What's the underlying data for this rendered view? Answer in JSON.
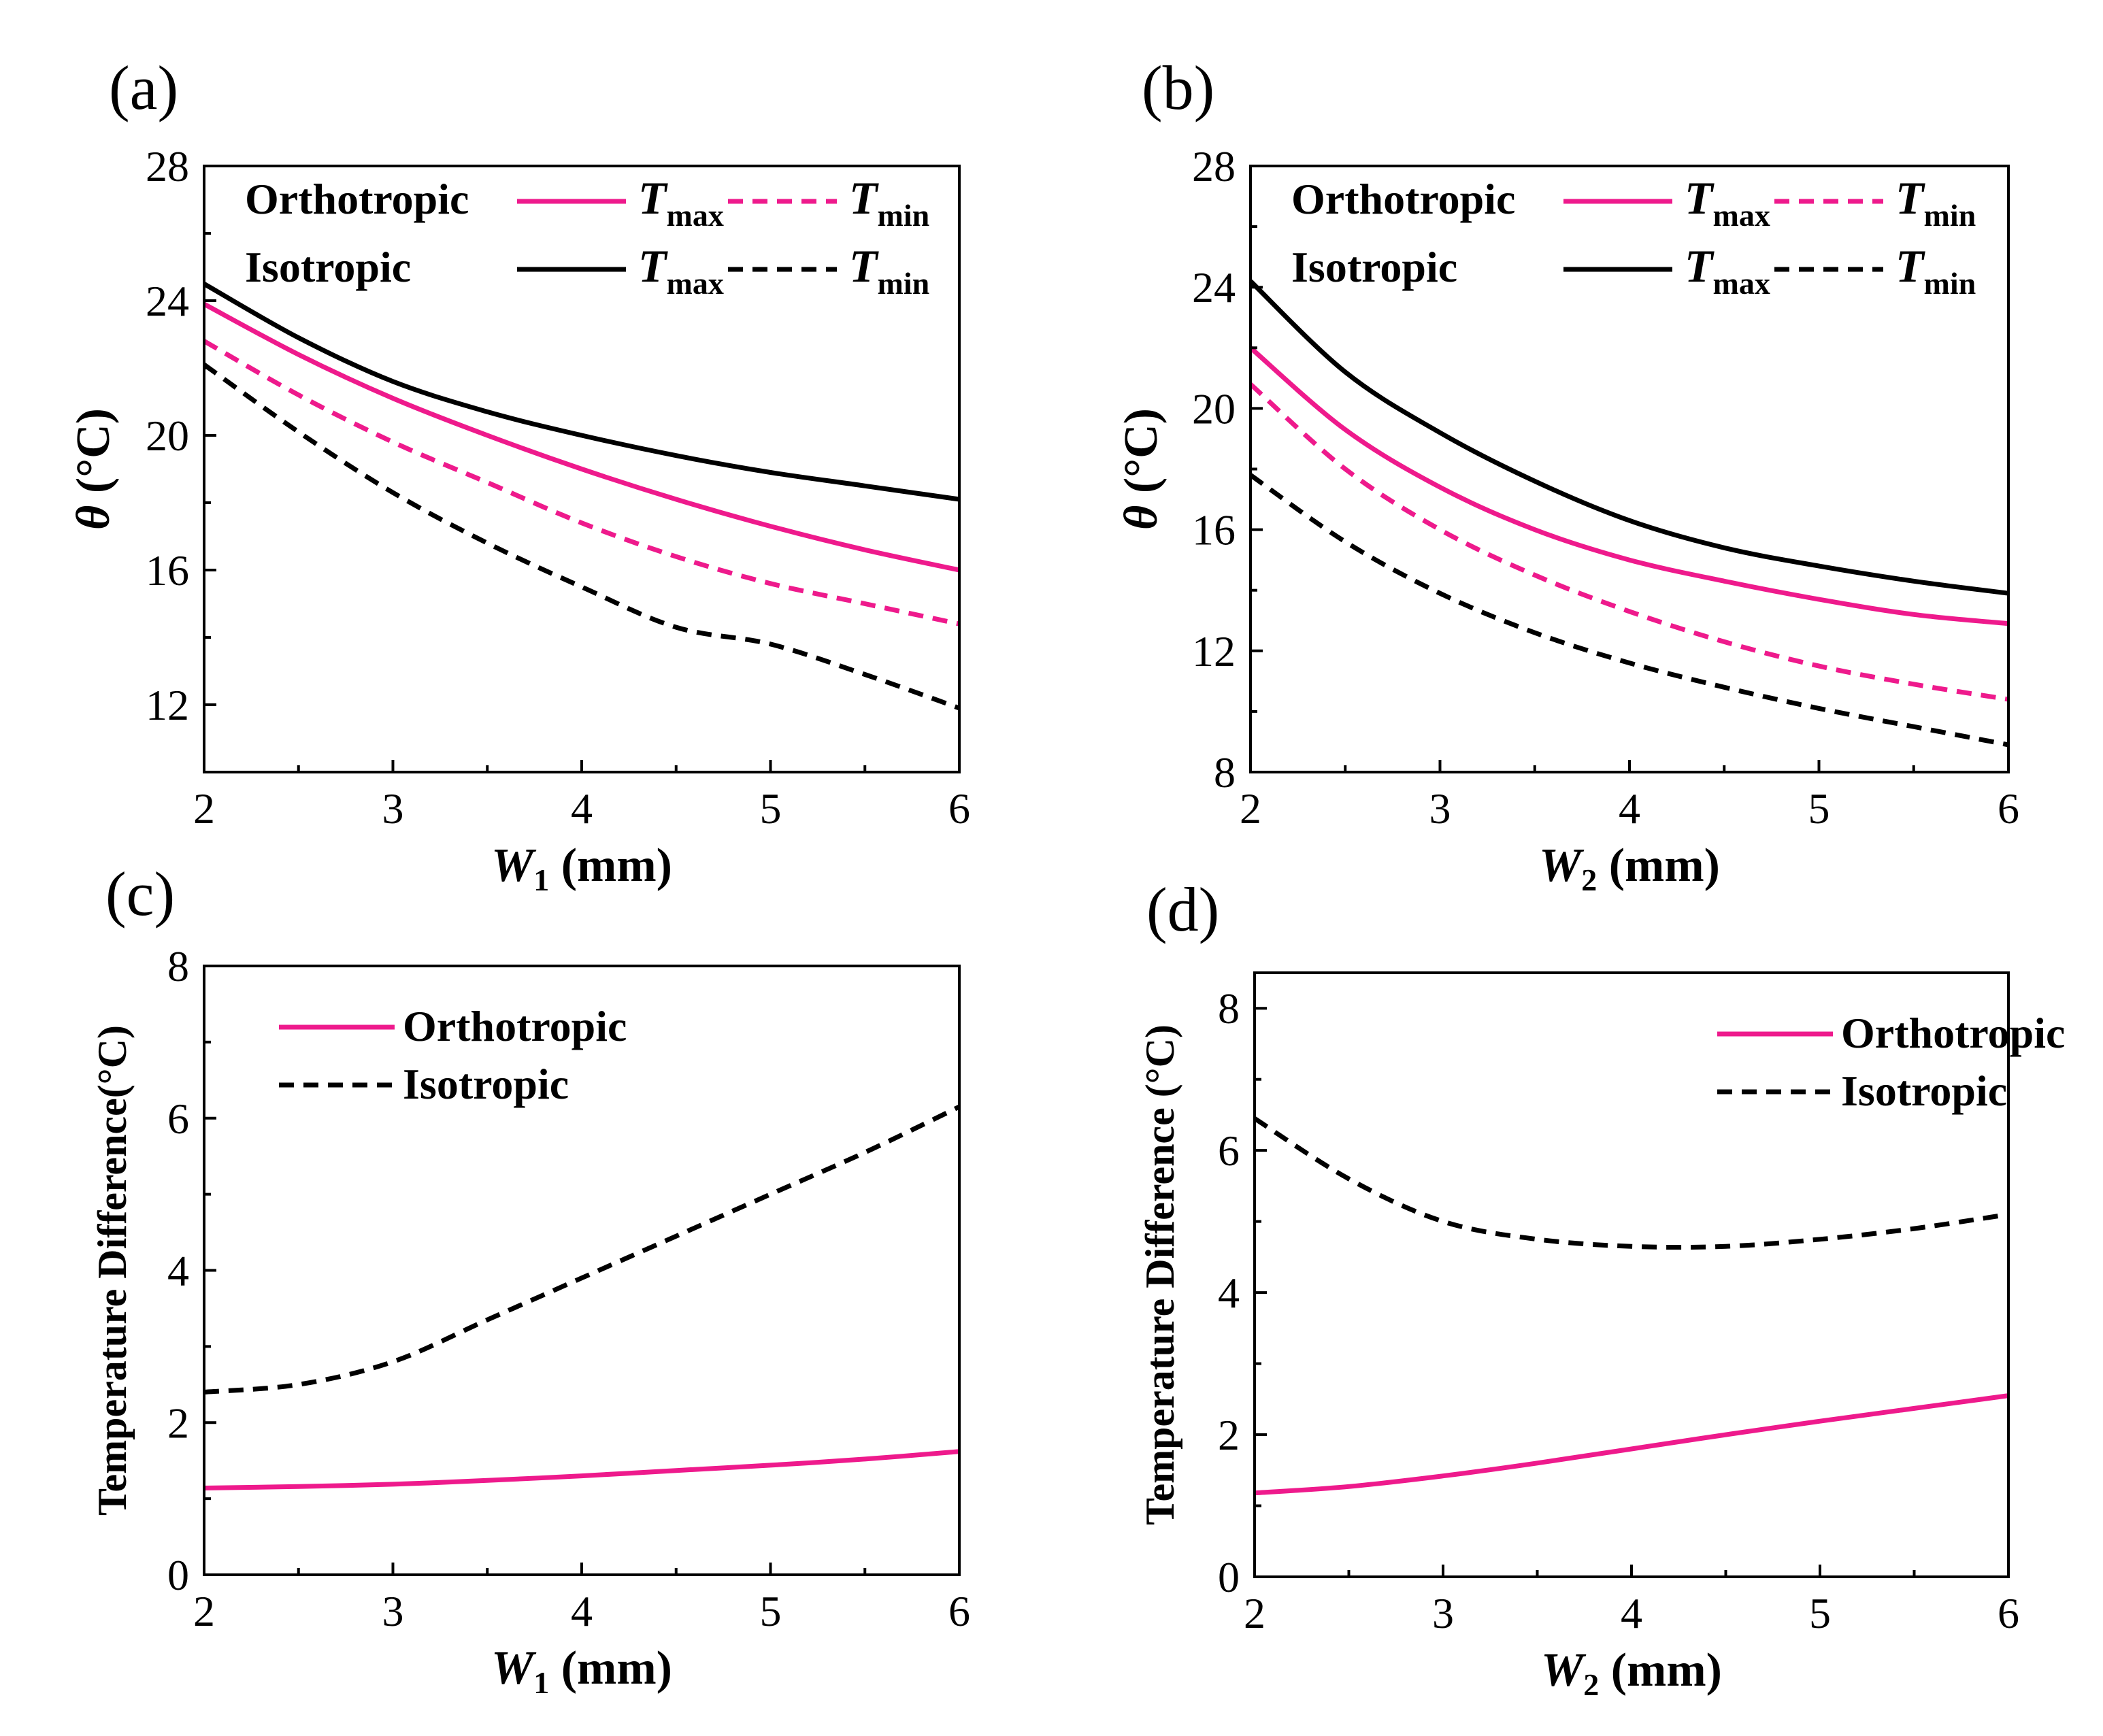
{
  "colors": {
    "orthotropic": "#ee1a8c",
    "isotropic": "#000000",
    "axis": "#000000"
  },
  "chart_data": [
    {
      "type": "line",
      "panel_label": "(a)",
      "xlabel": {
        "main": "W",
        "sub": "1",
        "unit": " (mm)"
      },
      "ylabel": {
        "theta": "θ",
        "unit": " (°C)"
      },
      "xlim": [
        2,
        6
      ],
      "ylim": [
        10,
        28
      ],
      "xticks": [
        2,
        3,
        4,
        5,
        6
      ],
      "yticks": [
        12,
        16,
        20,
        24,
        28
      ],
      "legend": {
        "row1": "Orthotropic",
        "row2": "Isotropic",
        "sym": "T",
        "sub_max": "max",
        "sub_min": "min"
      },
      "x": [
        2,
        2.5,
        3,
        3.5,
        4,
        4.5,
        5,
        5.5,
        6
      ],
      "series": [
        {
          "name": "Orthotropic Tmax",
          "color": "#ee1a8c",
          "dash": false,
          "values": [
            23.9,
            22.4,
            21.1,
            20.0,
            19.0,
            18.1,
            17.3,
            16.6,
            16.0
          ]
        },
        {
          "name": "Orthotropic Tmin",
          "color": "#ee1a8c",
          "dash": true,
          "values": [
            22.8,
            21.2,
            19.8,
            18.6,
            17.4,
            16.4,
            15.6,
            15.0,
            14.4
          ]
        },
        {
          "name": "Isotropic Tmax",
          "color": "#000000",
          "dash": false,
          "values": [
            24.5,
            22.9,
            21.6,
            20.7,
            20.0,
            19.4,
            18.9,
            18.5,
            18.1
          ]
        },
        {
          "name": "Isotropic Tmin",
          "color": "#000000",
          "dash": true,
          "values": [
            22.1,
            20.1,
            18.3,
            16.8,
            15.5,
            14.3,
            13.8,
            12.9,
            11.9
          ]
        }
      ]
    },
    {
      "type": "line",
      "panel_label": "(b)",
      "xlabel": {
        "main": "W",
        "sub": "2",
        "unit": " (mm)"
      },
      "ylabel": {
        "theta": "θ",
        "unit": " (°C)"
      },
      "xlim": [
        2,
        6
      ],
      "ylim": [
        8,
        28
      ],
      "xticks": [
        2,
        3,
        4,
        5,
        6
      ],
      "yticks": [
        8,
        12,
        16,
        20,
        24,
        28
      ],
      "legend": {
        "row1": "Orthotropic",
        "row2": "Isotropic",
        "sym": "T",
        "sub_max": "max",
        "sub_min": "min"
      },
      "x": [
        2,
        2.5,
        3,
        3.5,
        4,
        4.5,
        5,
        5.5,
        6
      ],
      "series": [
        {
          "name": "Orthotropic Tmax",
          "color": "#ee1a8c",
          "dash": false,
          "values": [
            22.0,
            19.3,
            17.4,
            16.0,
            15.0,
            14.3,
            13.7,
            13.2,
            12.9
          ]
        },
        {
          "name": "Orthotropic Tmin",
          "color": "#ee1a8c",
          "dash": true,
          "values": [
            20.8,
            18.0,
            16.0,
            14.5,
            13.3,
            12.3,
            11.5,
            10.9,
            10.4
          ]
        },
        {
          "name": "Isotropic Tmax",
          "color": "#000000",
          "dash": false,
          "values": [
            24.2,
            21.2,
            19.2,
            17.6,
            16.3,
            15.4,
            14.8,
            14.3,
            13.9
          ]
        },
        {
          "name": "Isotropic Tmin",
          "color": "#000000",
          "dash": true,
          "values": [
            17.8,
            15.6,
            13.9,
            12.6,
            11.6,
            10.8,
            10.1,
            9.5,
            8.9
          ]
        }
      ]
    },
    {
      "type": "line",
      "panel_label": "(c)",
      "xlabel": {
        "main": "W",
        "sub": "1",
        "unit": " (mm)"
      },
      "ylabel": {
        "text": "Temperature Difference(°C)"
      },
      "xlim": [
        2,
        6
      ],
      "ylim": [
        0,
        8
      ],
      "xticks": [
        2,
        3,
        4,
        5,
        6
      ],
      "yticks": [
        0,
        2,
        4,
        6,
        8
      ],
      "legend": {
        "row1": "Orthotropic",
        "row2": "Isotropic"
      },
      "x": [
        2,
        2.5,
        3,
        3.5,
        4,
        4.5,
        5,
        5.5,
        6
      ],
      "series": [
        {
          "name": "Orthotropic",
          "color": "#ee1a8c",
          "dash": false,
          "values": [
            1.14,
            1.16,
            1.19,
            1.24,
            1.3,
            1.37,
            1.44,
            1.52,
            1.62
          ]
        },
        {
          "name": "Isotropic",
          "color": "#000000",
          "dash": true,
          "values": [
            2.4,
            2.5,
            2.8,
            3.35,
            3.9,
            4.45,
            5.0,
            5.55,
            6.15
          ]
        }
      ]
    },
    {
      "type": "line",
      "panel_label": "(d)",
      "xlabel": {
        "main": "W",
        "sub": "2",
        "unit": " (mm)"
      },
      "ylabel": {
        "text": "Temperature Difference (°C)"
      },
      "xlim": [
        2,
        6
      ],
      "ylim": [
        0,
        8.5
      ],
      "xticks": [
        2,
        3,
        4,
        5,
        6
      ],
      "yticks": [
        0,
        2,
        4,
        6,
        8
      ],
      "legend": {
        "row1": "Orthotropic",
        "row2": "Isotropic"
      },
      "x": [
        2,
        2.5,
        3,
        3.5,
        4,
        4.5,
        5,
        5.5,
        6
      ],
      "series": [
        {
          "name": "Orthotropic",
          "color": "#ee1a8c",
          "dash": false,
          "values": [
            1.18,
            1.27,
            1.42,
            1.6,
            1.8,
            2.0,
            2.19,
            2.37,
            2.55
          ]
        },
        {
          "name": "Isotropic",
          "color": "#000000",
          "dash": true,
          "values": [
            6.45,
            5.6,
            5.0,
            4.75,
            4.65,
            4.65,
            4.75,
            4.9,
            5.1
          ]
        }
      ]
    }
  ]
}
